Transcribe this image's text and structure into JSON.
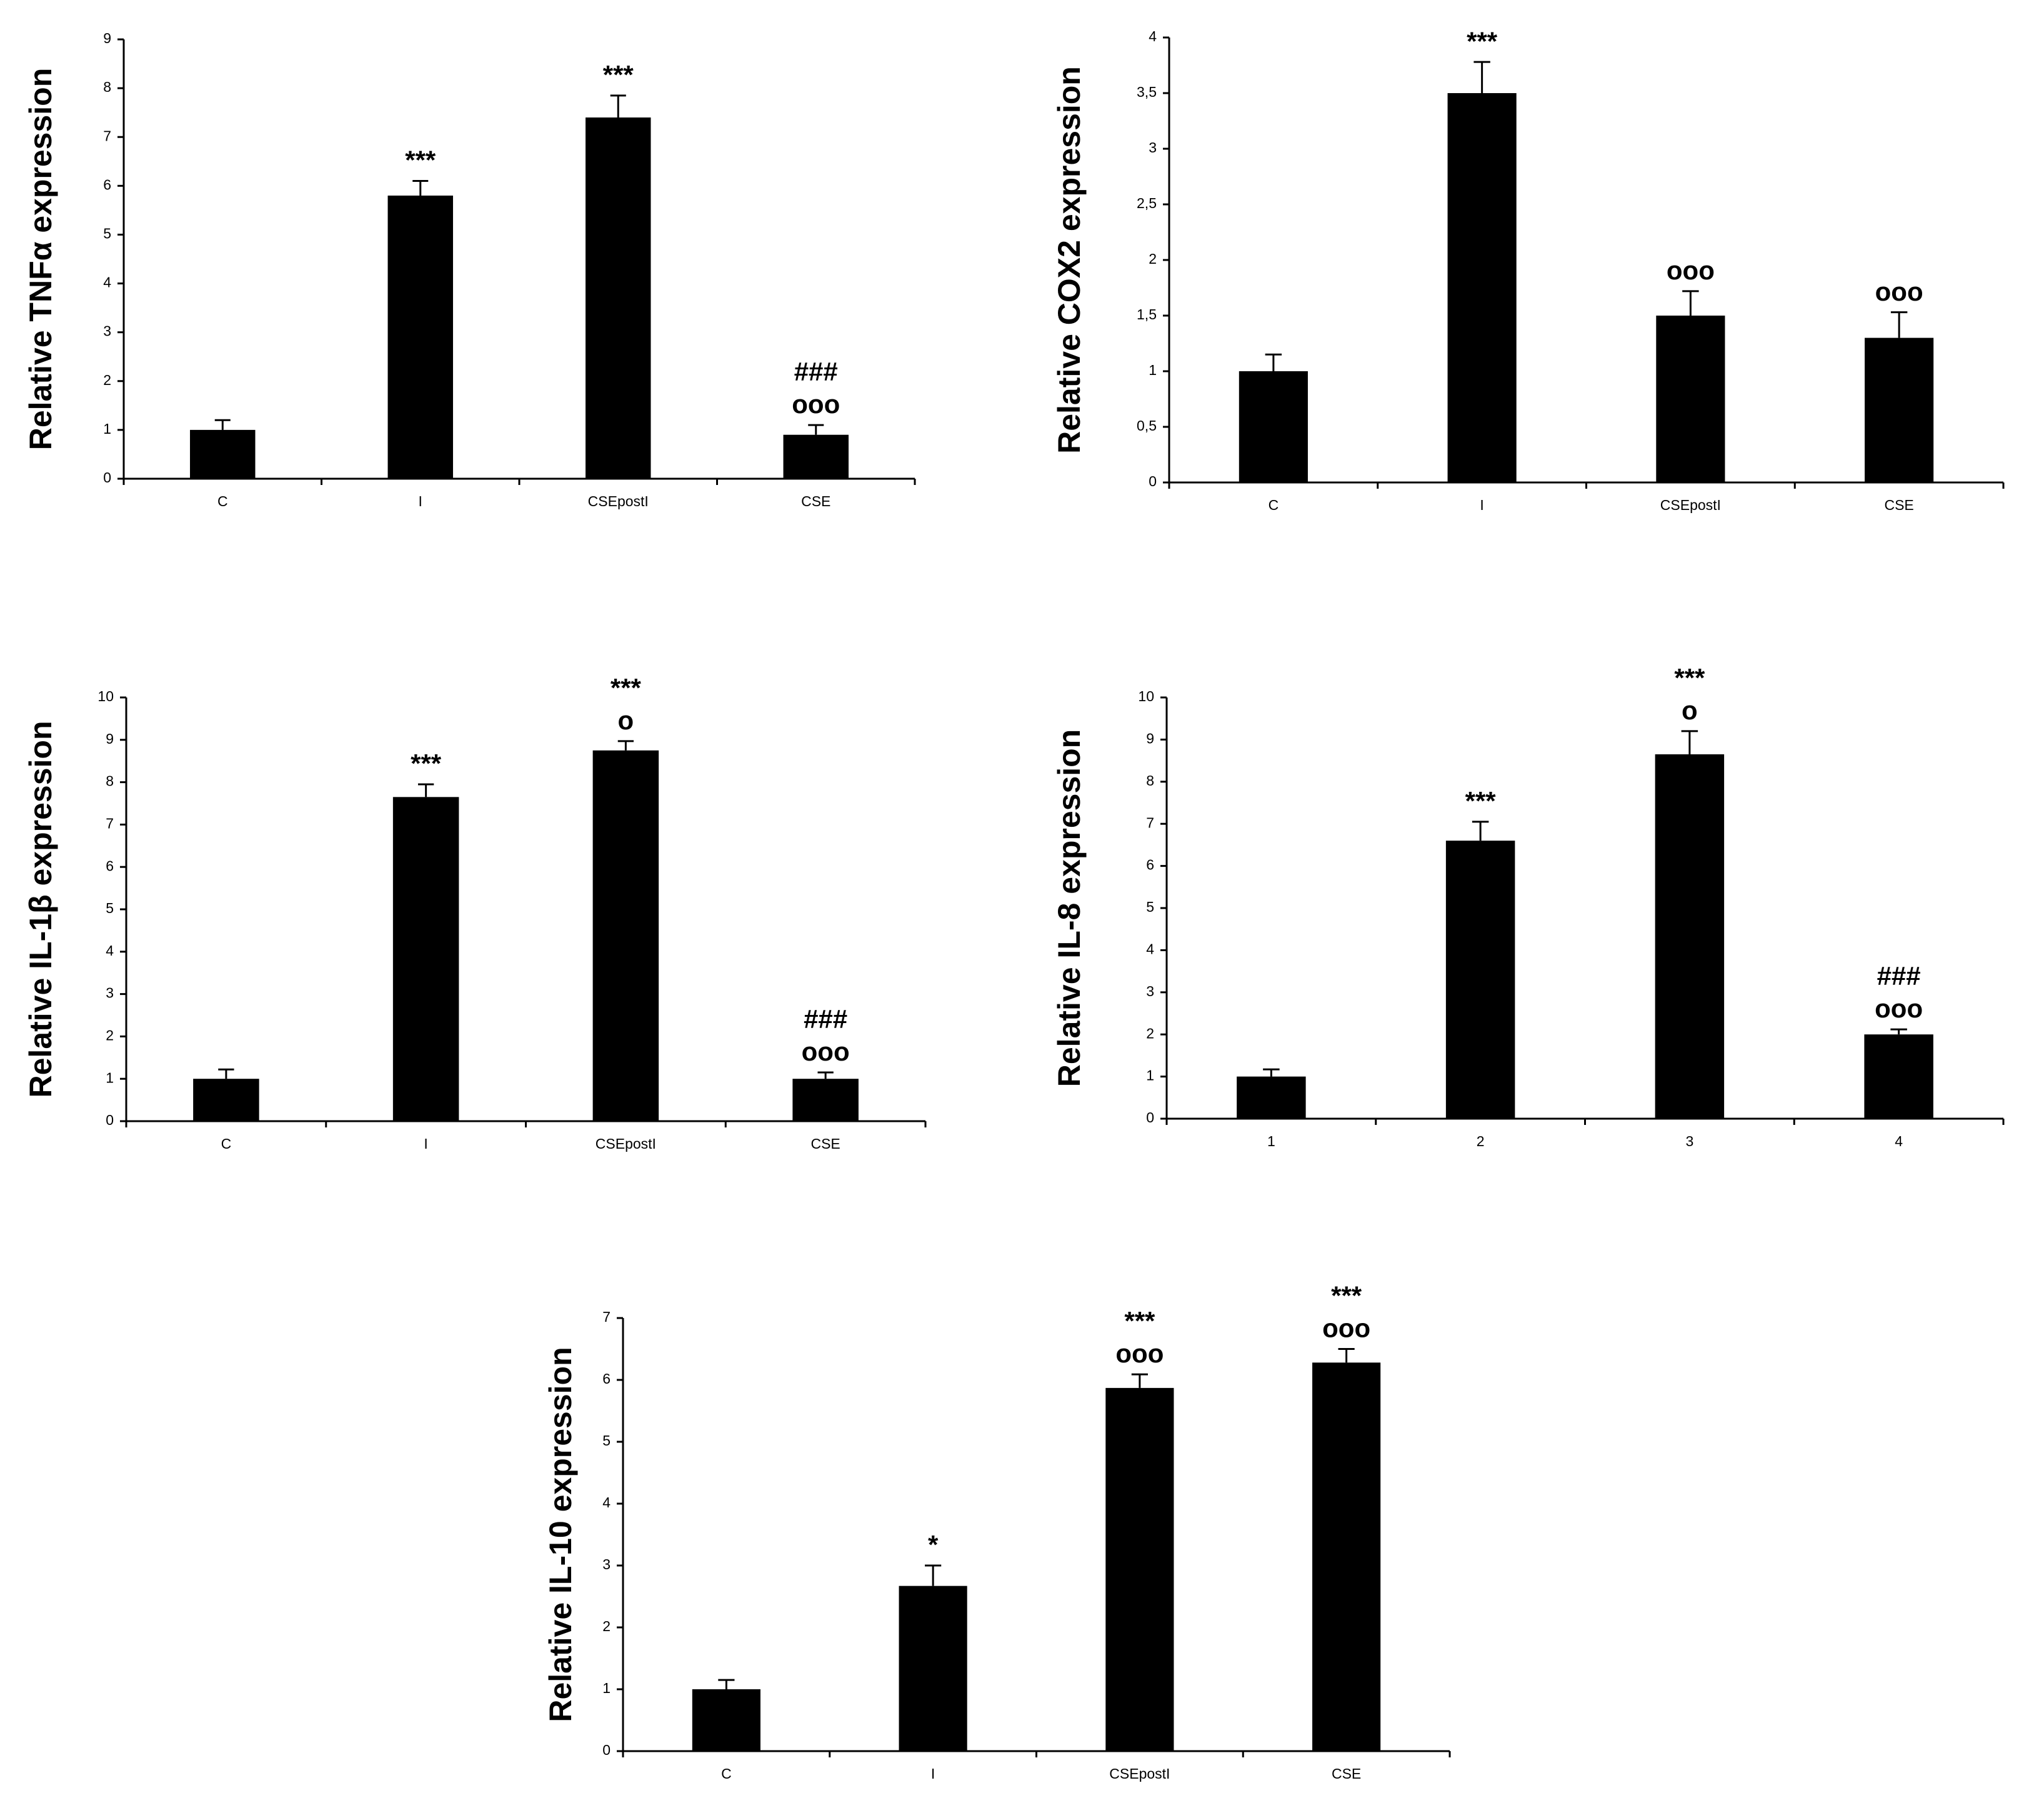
{
  "chart_data": [
    {
      "type": "bar",
      "y_label": "Relative TNFα expression",
      "categories": [
        "C",
        "I",
        "CSEpostI",
        "CSE"
      ],
      "values": [
        1.0,
        5.8,
        7.4,
        0.9
      ],
      "errors": [
        0.2,
        0.3,
        0.45,
        0.2
      ],
      "annotations": [
        [],
        [
          "***"
        ],
        [
          "***"
        ],
        [
          "###",
          "ooo"
        ]
      ],
      "ylim": [
        0,
        9
      ],
      "yticks": [
        0,
        1,
        2,
        3,
        4,
        5,
        6,
        7,
        8,
        9
      ],
      "color": "#000000"
    },
    {
      "type": "bar",
      "y_label": "Relative COX2 expression",
      "categories": [
        "C",
        "I",
        "CSEpostI",
        "CSE"
      ],
      "values": [
        1.0,
        3.5,
        1.5,
        1.3
      ],
      "errors": [
        0.15,
        0.28,
        0.22,
        0.23
      ],
      "annotations": [
        [],
        [
          "***"
        ],
        [
          "ooo"
        ],
        [
          "ooo"
        ]
      ],
      "ylim": [
        0,
        4
      ],
      "yticks": [
        0,
        {
          "value": 0.5,
          "label": "0,5"
        },
        1,
        {
          "value": 1.5,
          "label": "1,5"
        },
        2,
        {
          "value": 2.5,
          "label": "2,5"
        },
        3,
        {
          "value": 3.5,
          "label": "3,5"
        },
        4
      ],
      "color": "#000000"
    },
    {
      "type": "bar",
      "y_label": "Relative IL-1β expression",
      "categories": [
        "C",
        "I",
        "CSEpostI",
        "CSE"
      ],
      "values": [
        1.0,
        7.65,
        8.75,
        1.0
      ],
      "errors": [
        0.22,
        0.3,
        0.22,
        0.15
      ],
      "annotations": [
        [],
        [
          "***"
        ],
        [
          "***",
          "o"
        ],
        [
          "###",
          "ooo"
        ]
      ],
      "ylim": [
        0,
        10
      ],
      "yticks": [
        0,
        1,
        2,
        3,
        4,
        5,
        6,
        7,
        8,
        9,
        10
      ],
      "color": "#000000"
    },
    {
      "type": "bar",
      "y_label": "Relative IL-8 expression",
      "categories": [
        "1",
        "2",
        "3",
        "4"
      ],
      "values": [
        1.0,
        6.6,
        8.65,
        2.0
      ],
      "errors": [
        0.17,
        0.45,
        0.55,
        0.12
      ],
      "annotations": [
        [],
        [
          "***"
        ],
        [
          "***",
          "o"
        ],
        [
          "###",
          "ooo"
        ]
      ],
      "ylim": [
        0,
        10
      ],
      "yticks": [
        0,
        1,
        2,
        3,
        4,
        5,
        6,
        7,
        8,
        9,
        10
      ],
      "color": "#000000"
    },
    {
      "type": "bar",
      "y_label": "Relative IL-10 expression",
      "categories": [
        "C",
        "I",
        "CSEpostI",
        "CSE"
      ],
      "values": [
        1.0,
        2.67,
        5.87,
        6.28
      ],
      "errors": [
        0.15,
        0.33,
        0.22,
        0.22
      ],
      "annotations": [
        [],
        [
          "*"
        ],
        [
          "***",
          "ooo"
        ],
        [
          "***",
          "ooo"
        ]
      ],
      "ylim": [
        0,
        7
      ],
      "yticks": [
        0,
        1,
        2,
        3,
        4,
        5,
        6,
        7
      ],
      "color": "#000000"
    }
  ]
}
